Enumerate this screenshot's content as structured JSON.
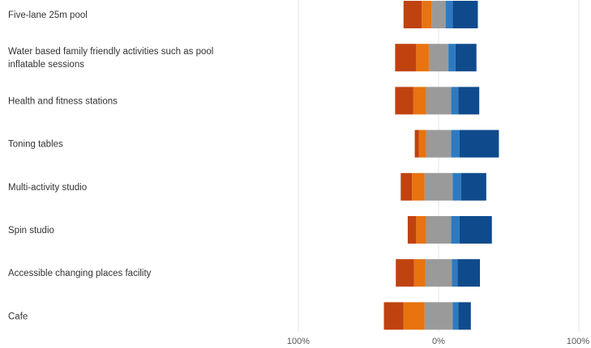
{
  "chart_data": {
    "type": "bar",
    "orientation": "horizontal",
    "stacked": "diverging",
    "title": "",
    "xlabel": "",
    "ylabel": "",
    "xlim": [
      -100,
      100
    ],
    "x_tick_labels": [
      "100%",
      "0%",
      "100%"
    ],
    "grid": true,
    "legend": "none",
    "categories": [
      [
        "Five-lane 25m pool"
      ],
      [
        "Water based family friendly activities such as pool",
        "inflatable sessions"
      ],
      [
        "Health and fitness stations"
      ],
      [
        "Toning tables"
      ],
      [
        "Multi-activity studio"
      ],
      [
        "Spin studio"
      ],
      [
        "Accessible changing places facility"
      ],
      [
        "Cafe"
      ]
    ],
    "series": [
      {
        "color": "#c0420f",
        "side": "left",
        "values": [
          13,
          15,
          13,
          3,
          8,
          6,
          13,
          14
        ]
      },
      {
        "color": "#e8730f",
        "side": "left",
        "values": [
          7,
          9,
          9,
          5,
          9,
          7,
          8,
          15
        ]
      },
      {
        "color": "#9a9a9a",
        "side": "neutral",
        "values": [
          10,
          14,
          18,
          18,
          20,
          18,
          19,
          20
        ]
      },
      {
        "color": "#2e7ac0",
        "side": "right",
        "values": [
          5,
          5,
          5,
          6,
          6,
          6,
          4,
          4
        ]
      },
      {
        "color": "#0f4b8c",
        "side": "right",
        "values": [
          18,
          15,
          15,
          28,
          18,
          23,
          16,
          9
        ]
      }
    ]
  }
}
